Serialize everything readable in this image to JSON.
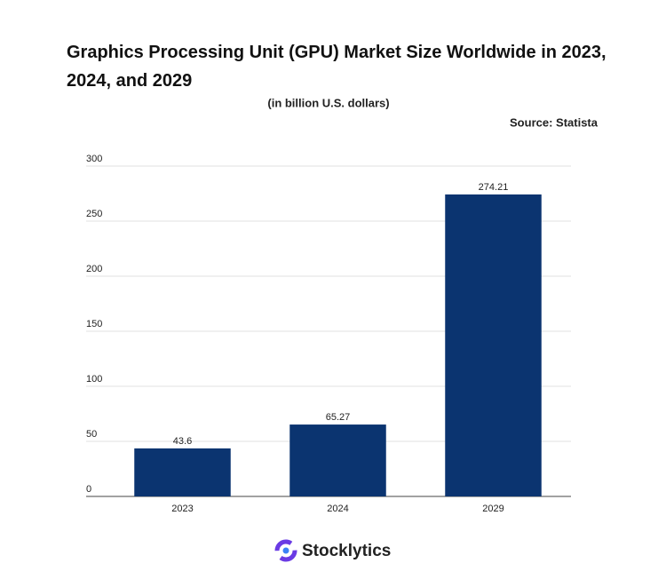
{
  "chart_data": {
    "type": "bar",
    "title": "Graphics Processing Unit (GPU) Market Size Worldwide in 2023, 2024, and 2029",
    "subtitle": "(in billion U.S. dollars)",
    "source": "Source: Statista",
    "brand": "Stocklytics",
    "categories": [
      "2023",
      "2024",
      "2029"
    ],
    "values": [
      43.6,
      65.27,
      274.21
    ],
    "color": "#0b3470",
    "ylim": [
      0,
      300
    ],
    "yticks": [
      0,
      50,
      100,
      150,
      200,
      250,
      300
    ],
    "grid": true
  }
}
